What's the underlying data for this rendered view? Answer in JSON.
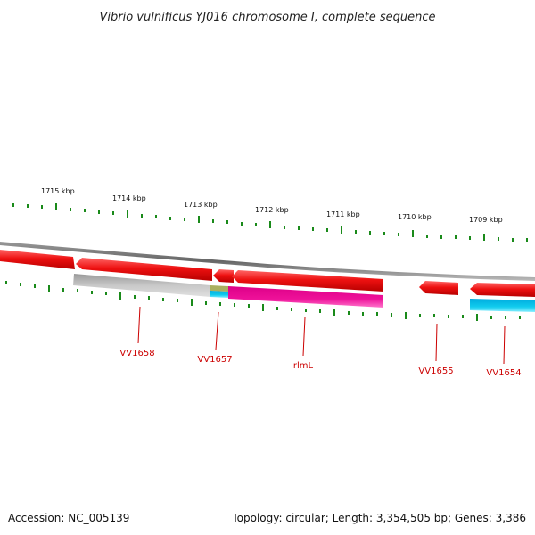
{
  "title": "Vibrio vulnificus YJ016 chromosome I, complete sequence",
  "scale_labels": [
    "1715 kbp",
    "1714 kbp",
    "1713 kbp",
    "1712 kbp",
    "1711 kbp",
    "1710 kbp",
    "1709 kbp"
  ],
  "genes": [
    {
      "label": "VV1658",
      "track": "forward",
      "color": "#ee1111",
      "strand": "forward"
    },
    {
      "label": "VV1658",
      "track": "reverse",
      "color": "#ee1111",
      "strand": "reverse"
    },
    {
      "label": "VV1657",
      "track": "reverse",
      "color": "#ee1111",
      "strand": "reverse"
    },
    {
      "label": "rlmL",
      "track": "reverse",
      "color": "#ee1111",
      "strand": "reverse"
    },
    {
      "label": "VV1655",
      "track": "reverse",
      "color": "#ee1111",
      "strand": "reverse"
    },
    {
      "label": "VV1654",
      "track": "reverse",
      "color": "#ee1111",
      "strand": "reverse"
    }
  ],
  "feature_labels": [
    "VV1658",
    "VV1657",
    "rlmL",
    "VV1655",
    "VV1654"
  ],
  "colors": {
    "gene": "#ee1111",
    "cog_grey": "#b8b8b8",
    "cog_magenta": "#ee1199",
    "cog_cyan": "#11ccee",
    "cog_olive": "#aab060",
    "ticks": "#1a8a1a",
    "backbone": "#777777",
    "label": "#cc0000"
  },
  "footer": {
    "accession": "Accession: NC_005139",
    "topology": "Topology: circular; Length: 3,354,505 bp; Genes: 3,386"
  }
}
